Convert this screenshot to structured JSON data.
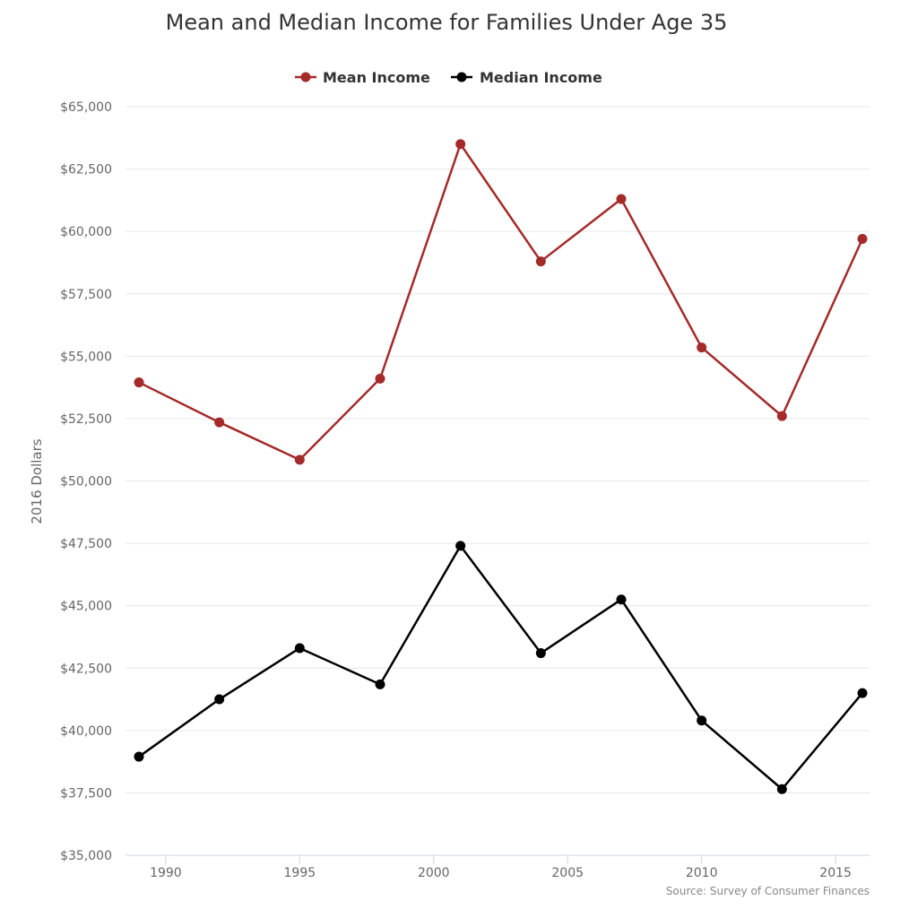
{
  "chart_data": {
    "type": "line",
    "title": "Mean and Median Income for Families Under Age 35",
    "ylabel": "2016 Dollars",
    "xlabel": "",
    "credit": "Source: Survey of Consumer Finances",
    "ylim": [
      35000,
      65000
    ],
    "yticks": [
      35000,
      37500,
      40000,
      42500,
      45000,
      47500,
      50000,
      52500,
      55000,
      57500,
      60000,
      62500,
      65000
    ],
    "ytick_labels": [
      "$35,000",
      "$37,500",
      "$40,000",
      "$42,500",
      "$45,000",
      "$47,500",
      "$50,000",
      "$52,500",
      "$55,000",
      "$57,500",
      "$60,000",
      "$62,500",
      "$65,000"
    ],
    "xlim": [
      1989,
      2016
    ],
    "xticks": [
      1990,
      1995,
      2000,
      2005,
      2010,
      2015
    ],
    "xtick_labels": [
      "1990",
      "1995",
      "2000",
      "2005",
      "2010",
      "2015"
    ],
    "grid": true,
    "legend_position": "top-center",
    "x": [
      1989,
      1992,
      1995,
      1998,
      2001,
      2004,
      2007,
      2010,
      2013,
      2016
    ],
    "series": [
      {
        "name": "Mean Income",
        "color": "#a52a2a",
        "values": [
          53950,
          52350,
          50850,
          54100,
          63500,
          58800,
          61300,
          55350,
          52600,
          59700
        ]
      },
      {
        "name": "Median Income",
        "color": "#000000",
        "values": [
          38950,
          41250,
          43300,
          41850,
          47400,
          43100,
          45250,
          40400,
          37650,
          41500
        ]
      }
    ]
  }
}
